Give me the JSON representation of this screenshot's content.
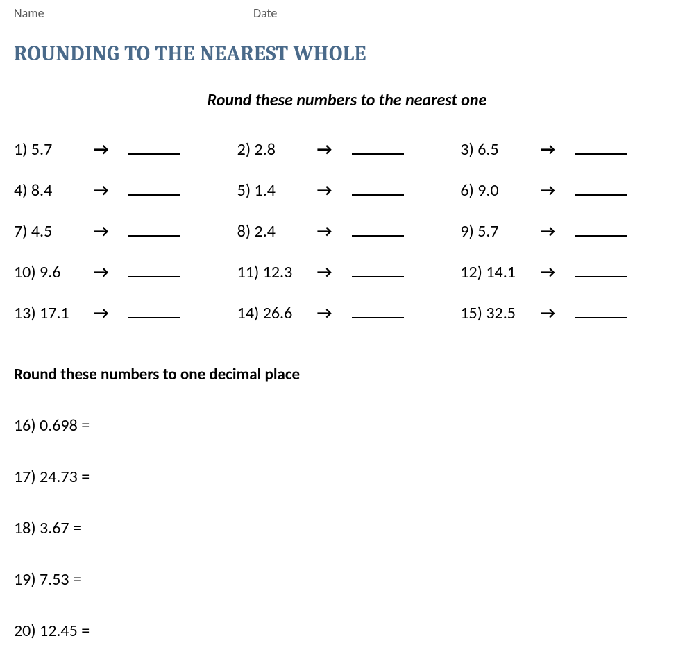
{
  "header": {
    "name_label": "Name",
    "date_label": "Date"
  },
  "title": "ROUNDING TO THE NEAREST WHOLE",
  "section1": {
    "subtitle": "Round these numbers to the nearest one",
    "problems": [
      {
        "num": "1)",
        "val": "5.7"
      },
      {
        "num": "2)",
        "val": "2.8"
      },
      {
        "num": "3)",
        "val": "6.5"
      },
      {
        "num": "4)",
        "val": "8.4"
      },
      {
        "num": "5)",
        "val": "1.4"
      },
      {
        "num": "6)",
        "val": "9.0"
      },
      {
        "num": "7)",
        "val": "4.5"
      },
      {
        "num": "8)",
        "val": "2.4"
      },
      {
        "num": "9)",
        "val": "5.7"
      },
      {
        "num": "10)",
        "val": "9.6"
      },
      {
        "num": "11)",
        "val": "12.3"
      },
      {
        "num": "12)",
        "val": "14.1"
      },
      {
        "num": "13)",
        "val": "17.1"
      },
      {
        "num": "14)",
        "val": "26.6"
      },
      {
        "num": "15)",
        "val": "32.5"
      }
    ],
    "arrow": "→"
  },
  "section2": {
    "title": "Round these numbers to one decimal place",
    "problems": [
      {
        "num": "16)",
        "val": "0.698"
      },
      {
        "num": "17)",
        "val": "24.73"
      },
      {
        "num": "18)",
        "val": "3.67"
      },
      {
        "num": "19)",
        "val": "7.53"
      },
      {
        "num": "20)",
        "val": "12.45"
      }
    ]
  }
}
